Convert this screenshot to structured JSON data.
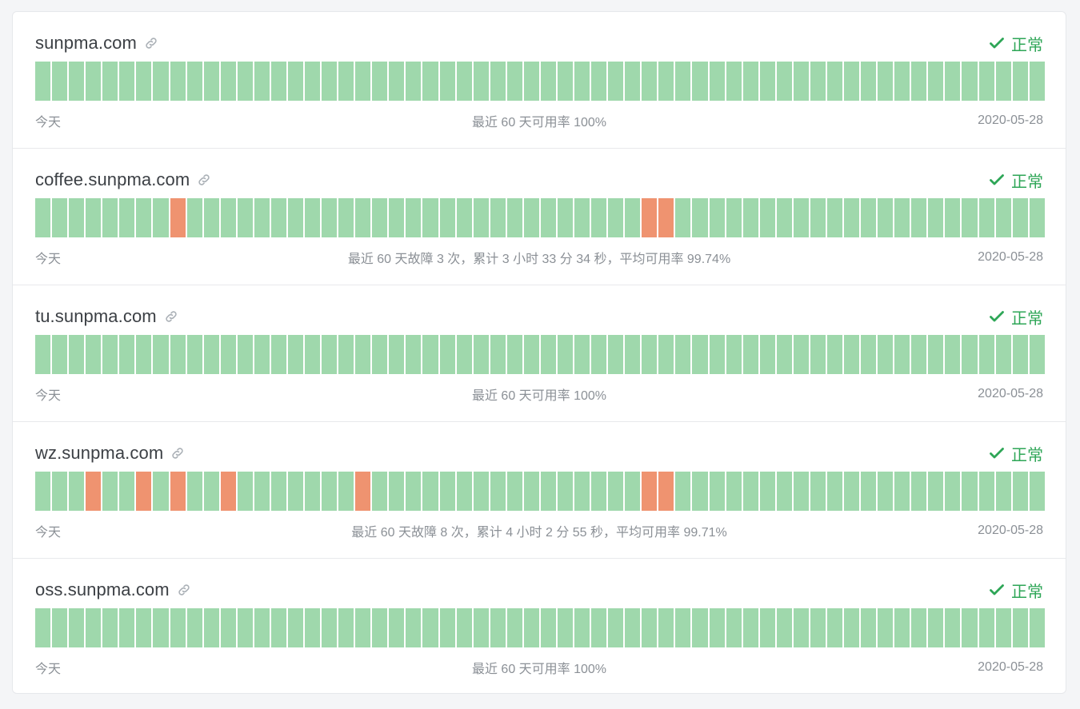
{
  "monitors": [
    {
      "name": "sunpma.com",
      "status": "正常",
      "left_label": "今天",
      "summary": "最近 60 天可用率 100%",
      "date": "2020-05-28",
      "down_days": []
    },
    {
      "name": "coffee.sunpma.com",
      "status": "正常",
      "left_label": "今天",
      "summary": "最近 60 天故障 3 次，累计 3 小时 33 分 34 秒，平均可用率 99.74%",
      "date": "2020-05-28",
      "down_days": [
        8,
        36,
        37
      ]
    },
    {
      "name": "tu.sunpma.com",
      "status": "正常",
      "left_label": "今天",
      "summary": "最近 60 天可用率 100%",
      "date": "2020-05-28",
      "down_days": []
    },
    {
      "name": "wz.sunpma.com",
      "status": "正常",
      "left_label": "今天",
      "summary": "最近 60 天故障 8 次，累计 4 小时 2 分 55 秒，平均可用率 99.71%",
      "date": "2020-05-28",
      "down_days": [
        3,
        6,
        8,
        11,
        19,
        36,
        37
      ]
    },
    {
      "name": "oss.sunpma.com",
      "status": "正常",
      "left_label": "今天",
      "summary": "最近 60 天可用率 100%",
      "date": "2020-05-28",
      "down_days": []
    }
  ],
  "day_count": 60,
  "colors": {
    "up": "#9fd8ac",
    "down": "#ef9370",
    "status_ok": "#2ea657"
  },
  "icons": {
    "link": "link-icon",
    "status": "check-icon"
  }
}
